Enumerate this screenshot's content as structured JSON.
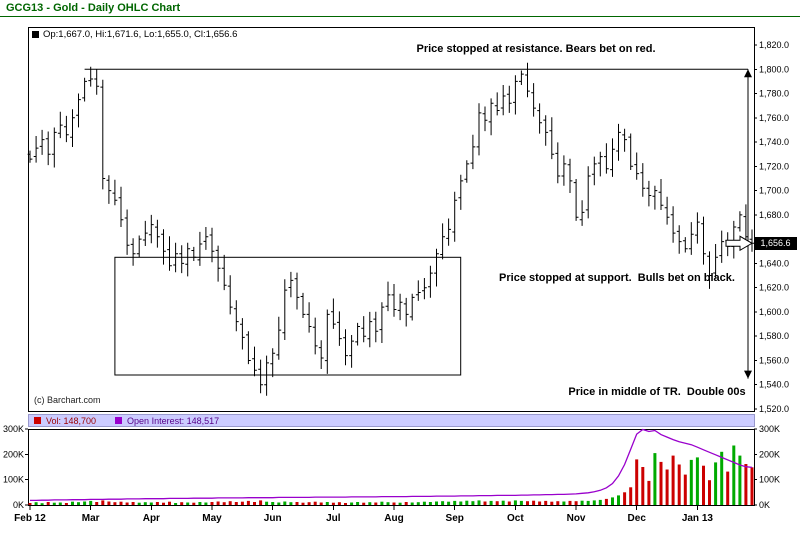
{
  "window": {
    "title": "GCG13 - Gold - Daily OHLC Chart"
  },
  "quote_legend": {
    "text": "Op:1,667.0, Hi:1,671.6, Lo:1,655.0, Cl:1,656.6"
  },
  "annotations": {
    "resistance": "Price stopped at resistance. Bears bet on red.",
    "support": "Price stopped at support.  Bulls bet on black.",
    "middle": "Price in middle of TR.  Double 00s",
    "copyright": "(c) Barchart.com"
  },
  "current_price_tag": "1,656.6",
  "volume_legend": {
    "vol_label": "Vol: 148,700",
    "oi_label": "Open Interest: 148,517"
  },
  "colors": {
    "title_green": "#006600",
    "ohlc_bar": "#000000",
    "vol_up": "#00aa00",
    "vol_down": "#cc0000",
    "oi_line": "#9900cc",
    "legend_bg": "#ccccff",
    "price_tag_bg": "#000000",
    "price_tag_text": "#ffffff"
  },
  "chart_data": {
    "type": "ohlc",
    "title": "GCG13 - Gold - Daily OHLC Chart",
    "ylim": [
      1520,
      1820
    ],
    "y_tick_step": 20,
    "y_ticks": [
      {
        "value": 1820,
        "label": "1,820.0"
      },
      {
        "value": 1800,
        "label": "1,800.0"
      },
      {
        "value": 1780,
        "label": "1,780.0"
      },
      {
        "value": 1760,
        "label": "1,760.0"
      },
      {
        "value": 1740,
        "label": "1,740.0"
      },
      {
        "value": 1720,
        "label": "1,720.0"
      },
      {
        "value": 1700,
        "label": "1,700.0"
      },
      {
        "value": 1680,
        "label": "1,680.0"
      },
      {
        "value": 1640,
        "label": "1,640.0"
      },
      {
        "value": 1620,
        "label": "1,620.0"
      },
      {
        "value": 1600,
        "label": "1,600.0"
      },
      {
        "value": 1580,
        "label": "1,580.0"
      },
      {
        "value": 1560,
        "label": "1,560.0"
      },
      {
        "value": 1540,
        "label": "1,540.0"
      },
      {
        "value": 1520,
        "label": "1,520.0"
      }
    ],
    "volume_ticks": [
      {
        "value": 0,
        "label": "0K"
      },
      {
        "value": 100,
        "label": "100K"
      },
      {
        "value": 200,
        "label": "200K"
      },
      {
        "value": 300,
        "label": "300K"
      }
    ],
    "months": [
      {
        "label": "Feb 12",
        "index": 0
      },
      {
        "label": "Mar",
        "index": 10
      },
      {
        "label": "Apr",
        "index": 20
      },
      {
        "label": "May",
        "index": 30
      },
      {
        "label": "Jun",
        "index": 40
      },
      {
        "label": "Jul",
        "index": 50
      },
      {
        "label": "Aug",
        "index": 60
      },
      {
        "label": "Sep",
        "index": 70
      },
      {
        "label": "Oct",
        "index": 80
      },
      {
        "label": "Nov",
        "index": 90
      },
      {
        "label": "Dec",
        "index": 100
      },
      {
        "label": "Jan 13",
        "index": 110
      }
    ],
    "closes": [
      1726,
      1735,
      1742,
      1730,
      1748,
      1754,
      1746,
      1760,
      1775,
      1790,
      1792,
      1786,
      1710,
      1700,
      1692,
      1676,
      1655,
      1648,
      1660,
      1665,
      1672,
      1662,
      1650,
      1638,
      1648,
      1640,
      1652,
      1645,
      1656,
      1662,
      1650,
      1636,
      1622,
      1604,
      1592,
      1579,
      1560,
      1552,
      1540,
      1558,
      1566,
      1585,
      1618,
      1626,
      1612,
      1598,
      1588,
      1572,
      1562,
      1598,
      1590,
      1578,
      1564,
      1576,
      1588,
      1580,
      1592,
      1584,
      1604,
      1614,
      1602,
      1608,
      1598,
      1612,
      1616,
      1620,
      1632,
      1648,
      1662,
      1668,
      1692,
      1708,
      1722,
      1736,
      1764,
      1758,
      1772,
      1766,
      1778,
      1772,
      1790,
      1796,
      1782,
      1768,
      1756,
      1748,
      1730,
      1712,
      1722,
      1708,
      1678,
      1682,
      1712,
      1722,
      1728,
      1718,
      1734,
      1748,
      1742,
      1720,
      1714,
      1702,
      1696,
      1700,
      1688,
      1678,
      1665,
      1658,
      1652,
      1664,
      1674,
      1648,
      1630,
      1645,
      1658,
      1654,
      1670,
      1680,
      1662,
      1656.6
    ],
    "volume_k": [
      8,
      11,
      7,
      12,
      9,
      10,
      8,
      13,
      11,
      14,
      16,
      12,
      18,
      14,
      11,
      13,
      10,
      12,
      9,
      11,
      10,
      12,
      9,
      13,
      8,
      11,
      10,
      9,
      12,
      10,
      12,
      14,
      11,
      15,
      12,
      13,
      16,
      12,
      18,
      13,
      12,
      10,
      14,
      11,
      12,
      9,
      11,
      13,
      10,
      12,
      9,
      11,
      8,
      10,
      12,
      9,
      11,
      10,
      13,
      11,
      10,
      9,
      12,
      10,
      11,
      13,
      12,
      14,
      15,
      13,
      16,
      14,
      17,
      15,
      18,
      14,
      16,
      15,
      17,
      14,
      18,
      16,
      15,
      17,
      14,
      16,
      13,
      15,
      14,
      16,
      15,
      17,
      16,
      18,
      20,
      24,
      30,
      38,
      50,
      70,
      180,
      150,
      95,
      205,
      170,
      140,
      195,
      160,
      120,
      178,
      188,
      155,
      98,
      168,
      210,
      132,
      235,
      195,
      162,
      148.7
    ],
    "open_interest_k": [
      18,
      18,
      19,
      19,
      20,
      20,
      20,
      21,
      21,
      21,
      22,
      22,
      22,
      23,
      23,
      23,
      24,
      24,
      24,
      25,
      25,
      25,
      25,
      26,
      26,
      26,
      26,
      27,
      27,
      27,
      27,
      28,
      28,
      28,
      28,
      28,
      29,
      29,
      29,
      29,
      29,
      30,
      30,
      30,
      30,
      30,
      30,
      31,
      31,
      31,
      31,
      31,
      31,
      32,
      32,
      32,
      32,
      32,
      33,
      33,
      33,
      33,
      33,
      34,
      34,
      34,
      34,
      35,
      35,
      35,
      35,
      36,
      36,
      36,
      37,
      37,
      37,
      38,
      38,
      38,
      38,
      39,
      39,
      40,
      40,
      41,
      41,
      42,
      42,
      43,
      44,
      46,
      48,
      52,
      58,
      68,
      85,
      115,
      160,
      220,
      280,
      298,
      290,
      294,
      278,
      268,
      258,
      250,
      244,
      238,
      228,
      218,
      208,
      198,
      188,
      178,
      168,
      158,
      151,
      148.5
    ],
    "last_bar": {
      "open": 1667.0,
      "high": 1671.6,
      "low": 1655.0,
      "close": 1656.6
    },
    "last_volume": 148700,
    "last_open_interest": 148517,
    "overlays": {
      "resistance_line": {
        "price": 1800,
        "start_index": 9
      },
      "span_arrow": {
        "top_price": 1800,
        "bottom_price": 1545
      },
      "range_box": {
        "start_index": 14,
        "end_index": 71,
        "top_price": 1645,
        "bottom_price": 1548
      },
      "price_pointer": {
        "price": 1656.6,
        "label": "1,656.6"
      }
    }
  }
}
